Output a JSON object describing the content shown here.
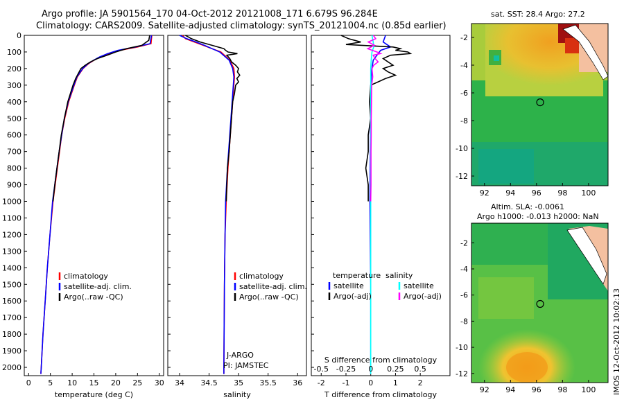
{
  "titles": {
    "line1": "Argo profile: JA 5901564_170 04-Oct-2012 20121008_171 6.679S 96.284E",
    "line2": "Climatology: CARS2009. Satellite-adjusted climatology: synTS_20121004.nc (0.85d earlier)"
  },
  "footer_stamp": "IMOS 12-Oct-2012 10:02:13",
  "colors": {
    "clim": "#ff0000",
    "sat": "#0000ff",
    "argo": "#000000",
    "sat_s": "#00ffff",
    "argo_s": "#ff00ff"
  },
  "chart_data": [
    {
      "id": "temperature",
      "type": "line",
      "xlabel": "temperature (deg C)",
      "ylabel": "",
      "xlim": [
        -1,
        31
      ],
      "ylim": [
        2050,
        0
      ],
      "xticks": [
        0,
        5,
        10,
        15,
        20,
        25,
        30
      ],
      "yticks": [
        0,
        100,
        200,
        300,
        400,
        500,
        600,
        700,
        800,
        900,
        1000,
        1100,
        1200,
        1300,
        1400,
        1500,
        1600,
        1700,
        1800,
        1900,
        2000
      ],
      "legend": [
        "climatology",
        "satellite-adj. clim.",
        "Argo(..raw -QC)"
      ],
      "series": [
        {
          "name": "climatology",
          "color": "clim",
          "depth": [
            0,
            50,
            70,
            90,
            110,
            130,
            150,
            170,
            200,
            250,
            300,
            400,
            500,
            600,
            700,
            800,
            900,
            1000,
            1200,
            1400,
            1600,
            1800,
            2000,
            2040
          ],
          "values": [
            28.3,
            28.1,
            25,
            21,
            18.5,
            16.5,
            15,
            13.8,
            12.5,
            11.2,
            10.5,
            9.2,
            8.3,
            7.6,
            7.1,
            6.6,
            6.1,
            5.6,
            4.9,
            4.3,
            3.8,
            3.3,
            2.9,
            2.8
          ]
        },
        {
          "name": "satellite-adj. clim.",
          "color": "sat",
          "depth": [
            0,
            50,
            70,
            90,
            110,
            130,
            150,
            170,
            200,
            250,
            300,
            400,
            500,
            600,
            700,
            800,
            900,
            1000,
            1200,
            1400,
            1600,
            1800,
            2000,
            2040
          ],
          "values": [
            28.2,
            27.9,
            24.5,
            20.5,
            18.2,
            16.3,
            14.9,
            13.7,
            12.4,
            11.1,
            10.4,
            9.1,
            8.2,
            7.6,
            7.0,
            6.5,
            6.0,
            5.5,
            4.9,
            4.3,
            3.8,
            3.3,
            2.9,
            2.8
          ]
        },
        {
          "name": "Argo(..raw -QC)",
          "color": "argo",
          "depth": [
            0,
            30,
            60,
            80,
            100,
            120,
            140,
            160,
            180,
            200,
            230,
            260,
            300,
            400,
            500,
            600,
            700,
            800,
            900,
            1000
          ],
          "values": [
            27.8,
            27.6,
            26,
            22.5,
            20,
            18,
            15.8,
            14.2,
            13,
            12,
            11.4,
            10.8,
            10.2,
            9.0,
            8.2,
            7.5,
            7.0,
            6.5,
            6.0,
            5.6
          ]
        }
      ]
    },
    {
      "id": "salinity",
      "type": "line",
      "xlabel": "salinity",
      "xlim": [
        33.8,
        36.15
      ],
      "ylim": [
        2050,
        0
      ],
      "xticks": [
        34,
        34.5,
        35,
        35.5,
        36
      ],
      "legend": [
        "climatology",
        "satellite-adj. clim.",
        "Argo(..raw -QC)"
      ],
      "annotations": [
        "J-ARGO",
        "PI: JAMSTEC"
      ],
      "series": [
        {
          "name": "climatology",
          "color": "clim",
          "depth": [
            0,
            20,
            40,
            60,
            80,
            100,
            150,
            200,
            250,
            300,
            400,
            500,
            600,
            700,
            800,
            1000,
            1200,
            1500,
            2000,
            2040
          ],
          "values": [
            34.05,
            34.1,
            34.25,
            34.4,
            34.55,
            34.7,
            34.85,
            34.92,
            34.93,
            34.92,
            34.9,
            34.88,
            34.86,
            34.84,
            34.82,
            34.79,
            34.77,
            34.76,
            34.75,
            34.75
          ]
        },
        {
          "name": "satellite-adj. clim.",
          "color": "sat",
          "depth": [
            0,
            20,
            40,
            60,
            80,
            100,
            150,
            200,
            250,
            300,
            400,
            500,
            600,
            700,
            800,
            1000,
            1200,
            1500,
            2000,
            2040
          ],
          "values": [
            34.0,
            34.12,
            34.28,
            34.42,
            34.55,
            34.68,
            34.84,
            34.9,
            34.92,
            34.91,
            34.89,
            34.87,
            34.85,
            34.83,
            34.81,
            34.78,
            34.77,
            34.76,
            34.75,
            34.75
          ]
        },
        {
          "name": "Argo(..raw -QC)",
          "color": "argo",
          "depth": [
            0,
            20,
            40,
            60,
            80,
            90,
            100,
            110,
            120,
            140,
            160,
            180,
            200,
            220,
            240,
            260,
            280,
            300,
            350,
            400,
            500,
            600,
            700,
            800,
            900,
            1000
          ],
          "values": [
            34.1,
            34.2,
            34.35,
            34.55,
            34.75,
            34.78,
            34.82,
            34.98,
            34.8,
            34.85,
            34.88,
            34.95,
            35.0,
            34.98,
            35.02,
            34.97,
            35.0,
            34.95,
            34.93,
            34.9,
            34.88,
            34.86,
            34.84,
            34.81,
            34.8,
            34.79
          ]
        }
      ]
    },
    {
      "id": "difference",
      "type": "line",
      "xlabel": "T difference from climatology",
      "xlabel_top": "S difference from climatology",
      "xlim": [
        -2.4,
        3.2
      ],
      "ylim": [
        2050,
        0
      ],
      "xticks": [
        -2,
        -1,
        0,
        1,
        2
      ],
      "xticks_s": [
        -0.5,
        -0.25,
        0,
        0.25,
        0.5
      ],
      "legend_t_title": "temperature",
      "legend_s_title": "salinity",
      "legend": [
        "satellite",
        "Argo(-adj)",
        "satellite",
        "Argo(-adj)"
      ],
      "series": [
        {
          "name": "T satellite",
          "color": "sat",
          "depth": [
            0,
            40,
            70,
            90,
            110,
            150,
            200,
            300,
            500,
            800,
            1000,
            1500,
            2000,
            2040
          ],
          "values": [
            0.6,
            0.5,
            0.8,
            0.4,
            0.3,
            0.1,
            0.05,
            0.0,
            0.0,
            -0.02,
            -0.03,
            0.0,
            0.0,
            0.0
          ]
        },
        {
          "name": "T Argo(-adj)",
          "color": "argo",
          "depth": [
            0,
            20,
            40,
            55,
            70,
            80,
            90,
            100,
            110,
            120,
            140,
            160,
            180,
            200,
            220,
            240,
            260,
            280,
            300,
            400,
            500,
            600,
            700,
            800,
            900,
            1000
          ],
          "values": [
            -1.2,
            -0.9,
            -0.4,
            -1.0,
            0.9,
            1.2,
            1.0,
            1.5,
            1.6,
            0.8,
            0.5,
            0.7,
            0.9,
            0.5,
            0.7,
            1.0,
            0.6,
            0.3,
            0.0,
            -0.05,
            0.0,
            -0.1,
            -0.1,
            -0.2,
            -0.1,
            -0.1
          ]
        },
        {
          "name": "S satellite",
          "color": "sat_s",
          "depth": [
            0,
            40,
            70,
            100,
            150,
            200,
            300,
            500,
            800,
            1000,
            1500,
            2000,
            2040
          ],
          "values": [
            0.05,
            0.1,
            0.12,
            0.05,
            0.02,
            0.0,
            0.0,
            0.0,
            0.0,
            0.0,
            0.0,
            0.0,
            0.0
          ]
        },
        {
          "name": "S Argo(-adj)",
          "color": "argo_s",
          "depth": [
            0,
            20,
            40,
            60,
            80,
            100,
            110,
            120,
            140,
            160,
            180,
            200,
            250,
            300,
            400,
            500,
            600,
            700,
            800,
            900,
            1000
          ],
          "values": [
            0.1,
            0.2,
            -0.1,
            0.15,
            -0.12,
            0.25,
            0.4,
            0.1,
            0.18,
            0.3,
            0.12,
            0.05,
            0.08,
            0.04,
            0.03,
            0.02,
            0.02,
            0.01,
            0.01,
            0.01,
            0.0
          ]
        }
      ]
    },
    {
      "id": "sst_map",
      "type": "heatmap",
      "title": "sat. SST: 28.4 Argo: 27.2",
      "xlim": [
        91,
        101.5
      ],
      "ylim": [
        -12.7,
        -1
      ],
      "xticks": [
        92,
        94,
        96,
        98,
        100
      ],
      "yticks": [
        -2,
        -4,
        -6,
        -8,
        -10,
        -12
      ],
      "marker": [
        96.28,
        -6.68
      ]
    },
    {
      "id": "sla_map",
      "type": "heatmap",
      "title": "Altim. SLA: -0.0061",
      "subtitle": "Argo h1000: -0.013 h2000: NaN",
      "xlim": [
        91,
        101.5
      ],
      "ylim": [
        -12.7,
        -0.5
      ],
      "xticks": [
        92,
        94,
        96,
        98,
        100
      ],
      "yticks": [
        -2,
        -4,
        -6,
        -8,
        -10,
        -12
      ],
      "marker": [
        96.28,
        -6.68
      ]
    }
  ]
}
